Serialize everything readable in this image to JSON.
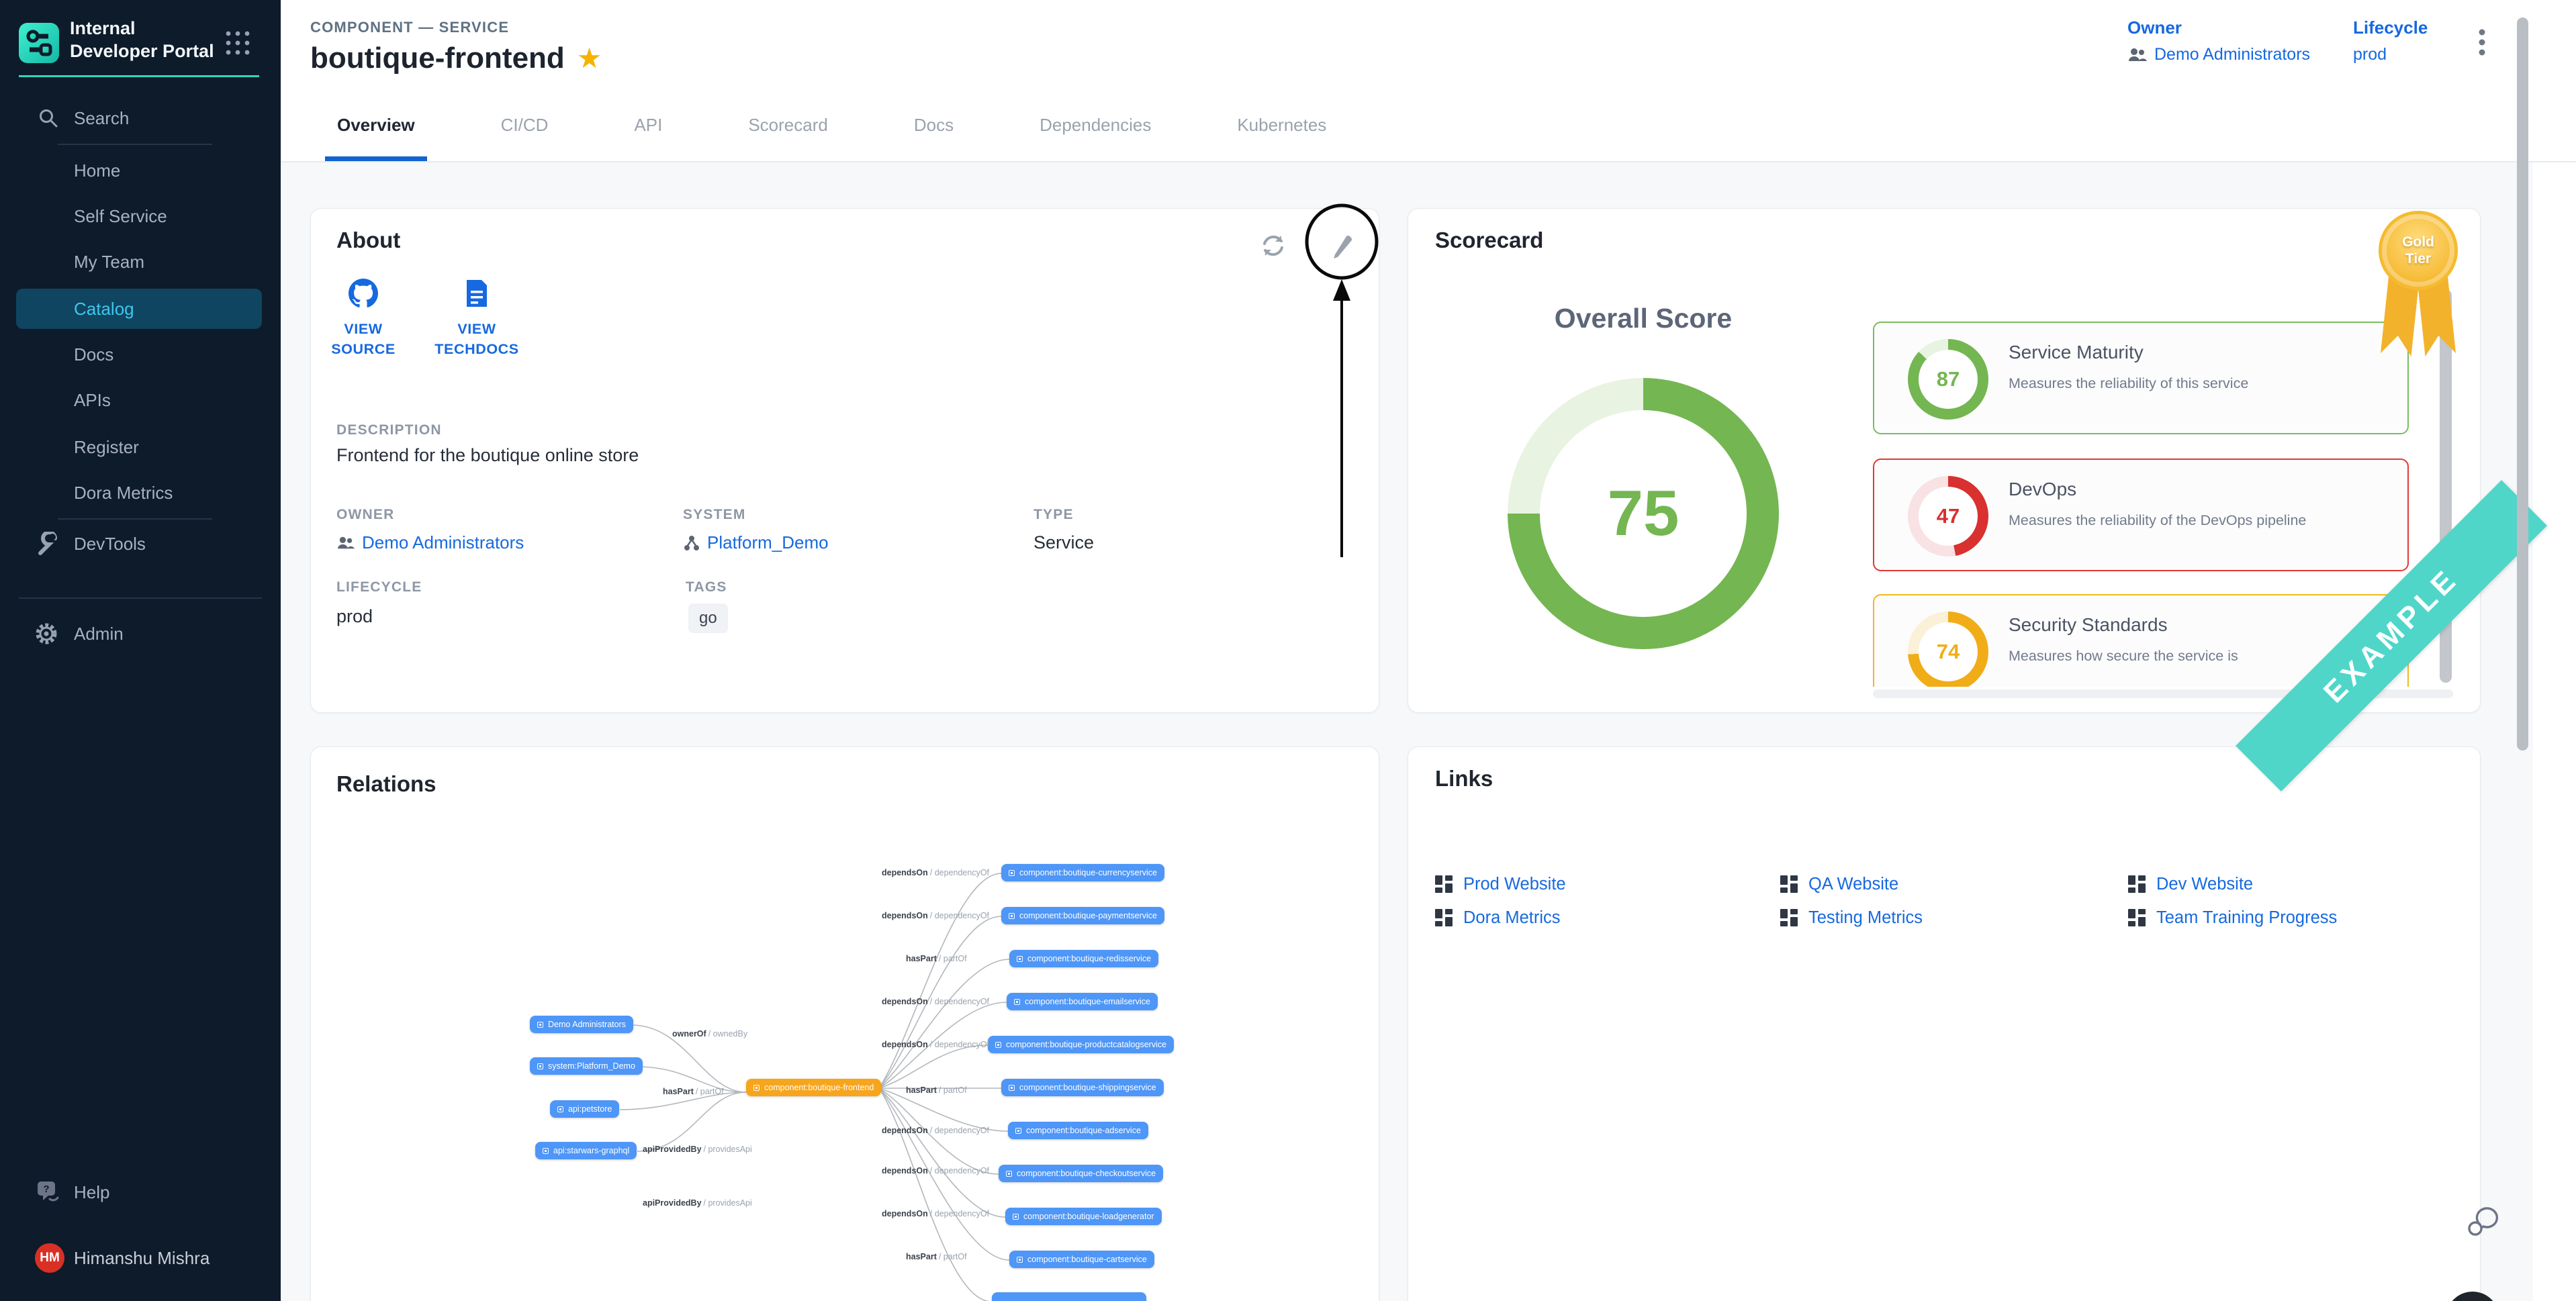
{
  "brand": {
    "name": "Internal Developer Portal"
  },
  "sidebar": {
    "search": "Search",
    "items": [
      "Home",
      "Self Service",
      "My Team",
      "Catalog",
      "Docs",
      "APIs",
      "Register",
      "Dora Metrics"
    ],
    "active": "Catalog",
    "devtools": "DevTools",
    "admin": "Admin",
    "help": "Help",
    "user": {
      "name": "Himanshu Mishra",
      "initials": "HM"
    }
  },
  "header": {
    "kicker": "COMPONENT — SERVICE",
    "title": "boutique-frontend",
    "owner_label": "Owner",
    "owner_value": "Demo Administrators",
    "lifecycle_label": "Lifecycle",
    "lifecycle_value": "prod"
  },
  "tabs": [
    "Overview",
    "CI/CD",
    "API",
    "Scorecard",
    "Docs",
    "Dependencies",
    "Kubernetes"
  ],
  "active_tab": "Overview",
  "about": {
    "title": "About",
    "view_source": "VIEW SOURCE",
    "view_techdocs": "VIEW TECHDOCS",
    "description_label": "DESCRIPTION",
    "description": "Frontend for the boutique online store",
    "owner_label": "OWNER",
    "owner": "Demo Administrators",
    "system_label": "SYSTEM",
    "system": "Platform_Demo",
    "type_label": "TYPE",
    "type": "Service",
    "lifecycle_label": "LIFECYCLE",
    "lifecycle": "prod",
    "tags_label": "TAGS",
    "tags": [
      "go"
    ]
  },
  "scorecard": {
    "title": "Scorecard",
    "badge": {
      "line1": "Gold",
      "line2": "Tier"
    },
    "overall_label": "Overall Score",
    "overall": {
      "score": 75,
      "ring": "#74b651",
      "ring_bg": "#e9f3e2"
    },
    "items": [
      {
        "name": "Service Maturity",
        "description": "Measures the reliability of this service",
        "score": 87,
        "ring": "#74b651",
        "ring_bg": "#e8f3e1",
        "border": "#7cbc60"
      },
      {
        "name": "DevOps",
        "description": "Measures the reliability of the DevOps pipeline",
        "score": 47,
        "ring": "#d93030",
        "ring_bg": "#f8e2e3",
        "border": "#e03a34"
      },
      {
        "name": "Security Standards",
        "description": "Measures how secure the service is",
        "score": 74,
        "ring": "#f0ad18",
        "ring_bg": "#fbf0d8",
        "border": "#f2b824"
      }
    ],
    "ribbon": "EXAMPLE"
  },
  "relations": {
    "title": "Relations",
    "center": {
      "label": "component:boutique-frontend"
    },
    "left_nodes": [
      {
        "label": "Demo Administrators",
        "edge": "ownerOf",
        "edge_alt": "/ ownedBy"
      },
      {
        "label": "system:Platform_Demo",
        "edge": "hasPart",
        "edge_alt": "/ partOf"
      },
      {
        "label": "api:petstore",
        "edge": "apiProvidedBy",
        "edge_alt": "/ providesApi"
      },
      {
        "label": "api:starwars-graphql",
        "edge": "apiProvidedBy",
        "edge_alt": "/ providesApi"
      }
    ],
    "right_nodes": [
      {
        "label": "component:boutique-currencyservice",
        "edge": "dependsOn",
        "edge_alt": "/ dependencyOf"
      },
      {
        "label": "component:boutique-paymentservice",
        "edge": "dependsOn",
        "edge_alt": "/ dependencyOf"
      },
      {
        "label": "component:boutique-redisservice",
        "edge": "hasPart",
        "edge_alt": "/ partOf"
      },
      {
        "label": "component:boutique-emailservice",
        "edge": "dependsOn",
        "edge_alt": "/ dependencyOf"
      },
      {
        "label": "component:boutique-productcatalogservice",
        "edge": "dependsOn",
        "edge_alt": "/ dependencyOf"
      },
      {
        "label": "component:boutique-shippingservice",
        "edge": "hasPart",
        "edge_alt": "/ partOf"
      },
      {
        "label": "component:boutique-adservice",
        "edge": "dependsOn",
        "edge_alt": "/ dependencyOf"
      },
      {
        "label": "component:boutique-checkoutservice",
        "edge": "dependsOn",
        "edge_alt": "/ dependencyOf"
      },
      {
        "label": "component:boutique-loadgenerator",
        "edge": "dependsOn",
        "edge_alt": "/ dependencyOf"
      },
      {
        "label": "component:boutique-cartservice",
        "edge": "hasPart",
        "edge_alt": "/ partOf"
      }
    ]
  },
  "links": {
    "title": "Links",
    "items": [
      "Prod Website",
      "QA Website",
      "Dev Website",
      "Dora Metrics",
      "Testing Metrics",
      "Team Training Progress"
    ]
  },
  "colors": {
    "accent_blue": "#1669e0",
    "sidebar_bg": "#0d1b2a",
    "teal": "#2fd5bd",
    "ribbon_teal": "#4fd6c9",
    "star_gold": "#f5b301"
  }
}
